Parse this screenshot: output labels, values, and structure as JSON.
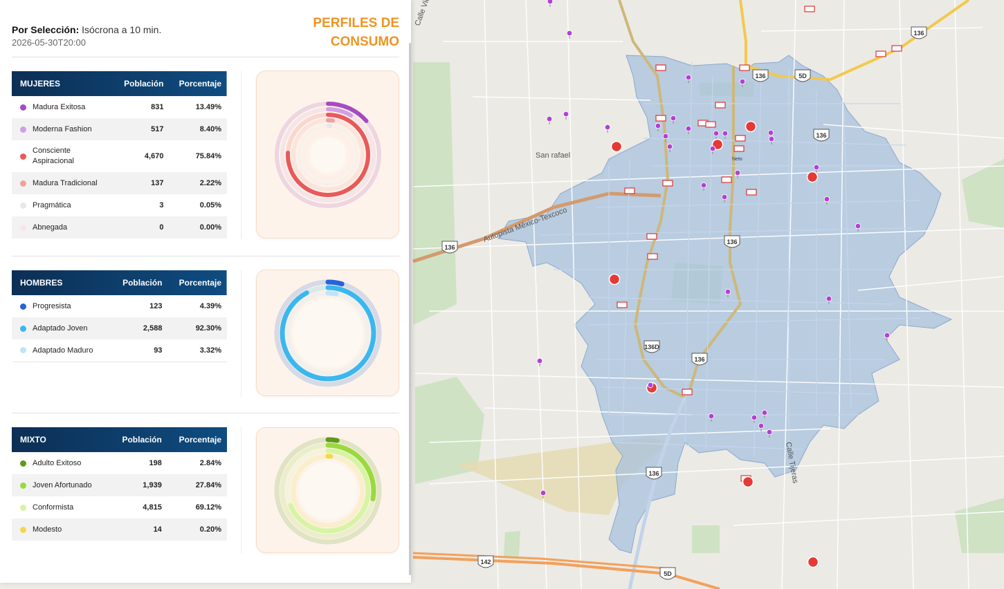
{
  "header": {
    "selection_label": "Por Selección:",
    "selection_value": "Isócrona a 10 min.",
    "date": "2026-05-30T20:00",
    "title_line1": "PERFILES DE",
    "title_line2": "CONSUMO"
  },
  "groups": [
    {
      "id": "mujeres",
      "title": "MUJERES",
      "col_population": "Población",
      "col_percentage": "Porcentaje",
      "rows": [
        {
          "name": "Madura Exitosa",
          "population": "831",
          "percentage": "13.49%",
          "pct": 13.49,
          "color": "#a54bc2"
        },
        {
          "name": "Moderna Fashion",
          "population": "517",
          "percentage": "8.40%",
          "pct": 8.4,
          "color": "#d39ee3"
        },
        {
          "name_line1": "Consciente",
          "name_line2": "Aspiracional",
          "population": "4,670",
          "percentage": "75.84%",
          "pct": 75.84,
          "color": "#e85a5a"
        },
        {
          "name": "Madura Tradicional",
          "population": "137",
          "percentage": "2.22%",
          "pct": 2.22,
          "color": "#f0a0a0"
        },
        {
          "name": "Pragmática",
          "population": "3",
          "percentage": "0.05%",
          "pct": 0.05,
          "color": "#e8e8e8"
        },
        {
          "name": "Abnegada",
          "population": "0",
          "percentage": "0.00%",
          "pct": 0.0,
          "color": "#fbe3e8"
        }
      ]
    },
    {
      "id": "hombres",
      "title": "HOMBRES",
      "col_population": "Población",
      "col_percentage": "Porcentaje",
      "rows": [
        {
          "name": "Progresista",
          "population": "123",
          "percentage": "4.39%",
          "pct": 4.39,
          "color": "#2563d8"
        },
        {
          "name": "Adaptado Joven",
          "population": "2,588",
          "percentage": "92.30%",
          "pct": 92.3,
          "color": "#3bb7ef"
        },
        {
          "name": "Adaptado Maduro",
          "population": "93",
          "percentage": "3.32%",
          "pct": 3.32,
          "color": "#bfe4f8"
        }
      ]
    },
    {
      "id": "mixto",
      "title": "MIXTO",
      "col_population": "Población",
      "col_percentage": "Porcentaje",
      "rows": [
        {
          "name": "Adulto Exitoso",
          "population": "198",
          "percentage": "2.84%",
          "pct": 2.84,
          "color": "#5c9b19"
        },
        {
          "name": "Joven Afortunado",
          "population": "1,939",
          "percentage": "27.84%",
          "pct": 27.84,
          "color": "#9bd93e"
        },
        {
          "name": "Conformista",
          "population": "4,815",
          "percentage": "69.12%",
          "pct": 69.12,
          "color": "#d7f4a4"
        },
        {
          "name": "Modesto",
          "population": "14",
          "percentage": "0.20%",
          "pct": 0.2,
          "color": "#f6d64a"
        }
      ]
    }
  ],
  "map": {
    "labels": {
      "san_rafael": "San rafael",
      "autopista": "Autopista México-Texcoco",
      "calle_tijeras": "Calle Tijeras",
      "calle_vic": "Calle Vic",
      "neto": "Neto"
    },
    "shields": [
      "136",
      "136",
      "136",
      "136",
      "136",
      "136",
      "136",
      "136D",
      "142",
      "5D",
      "5D"
    ]
  }
}
